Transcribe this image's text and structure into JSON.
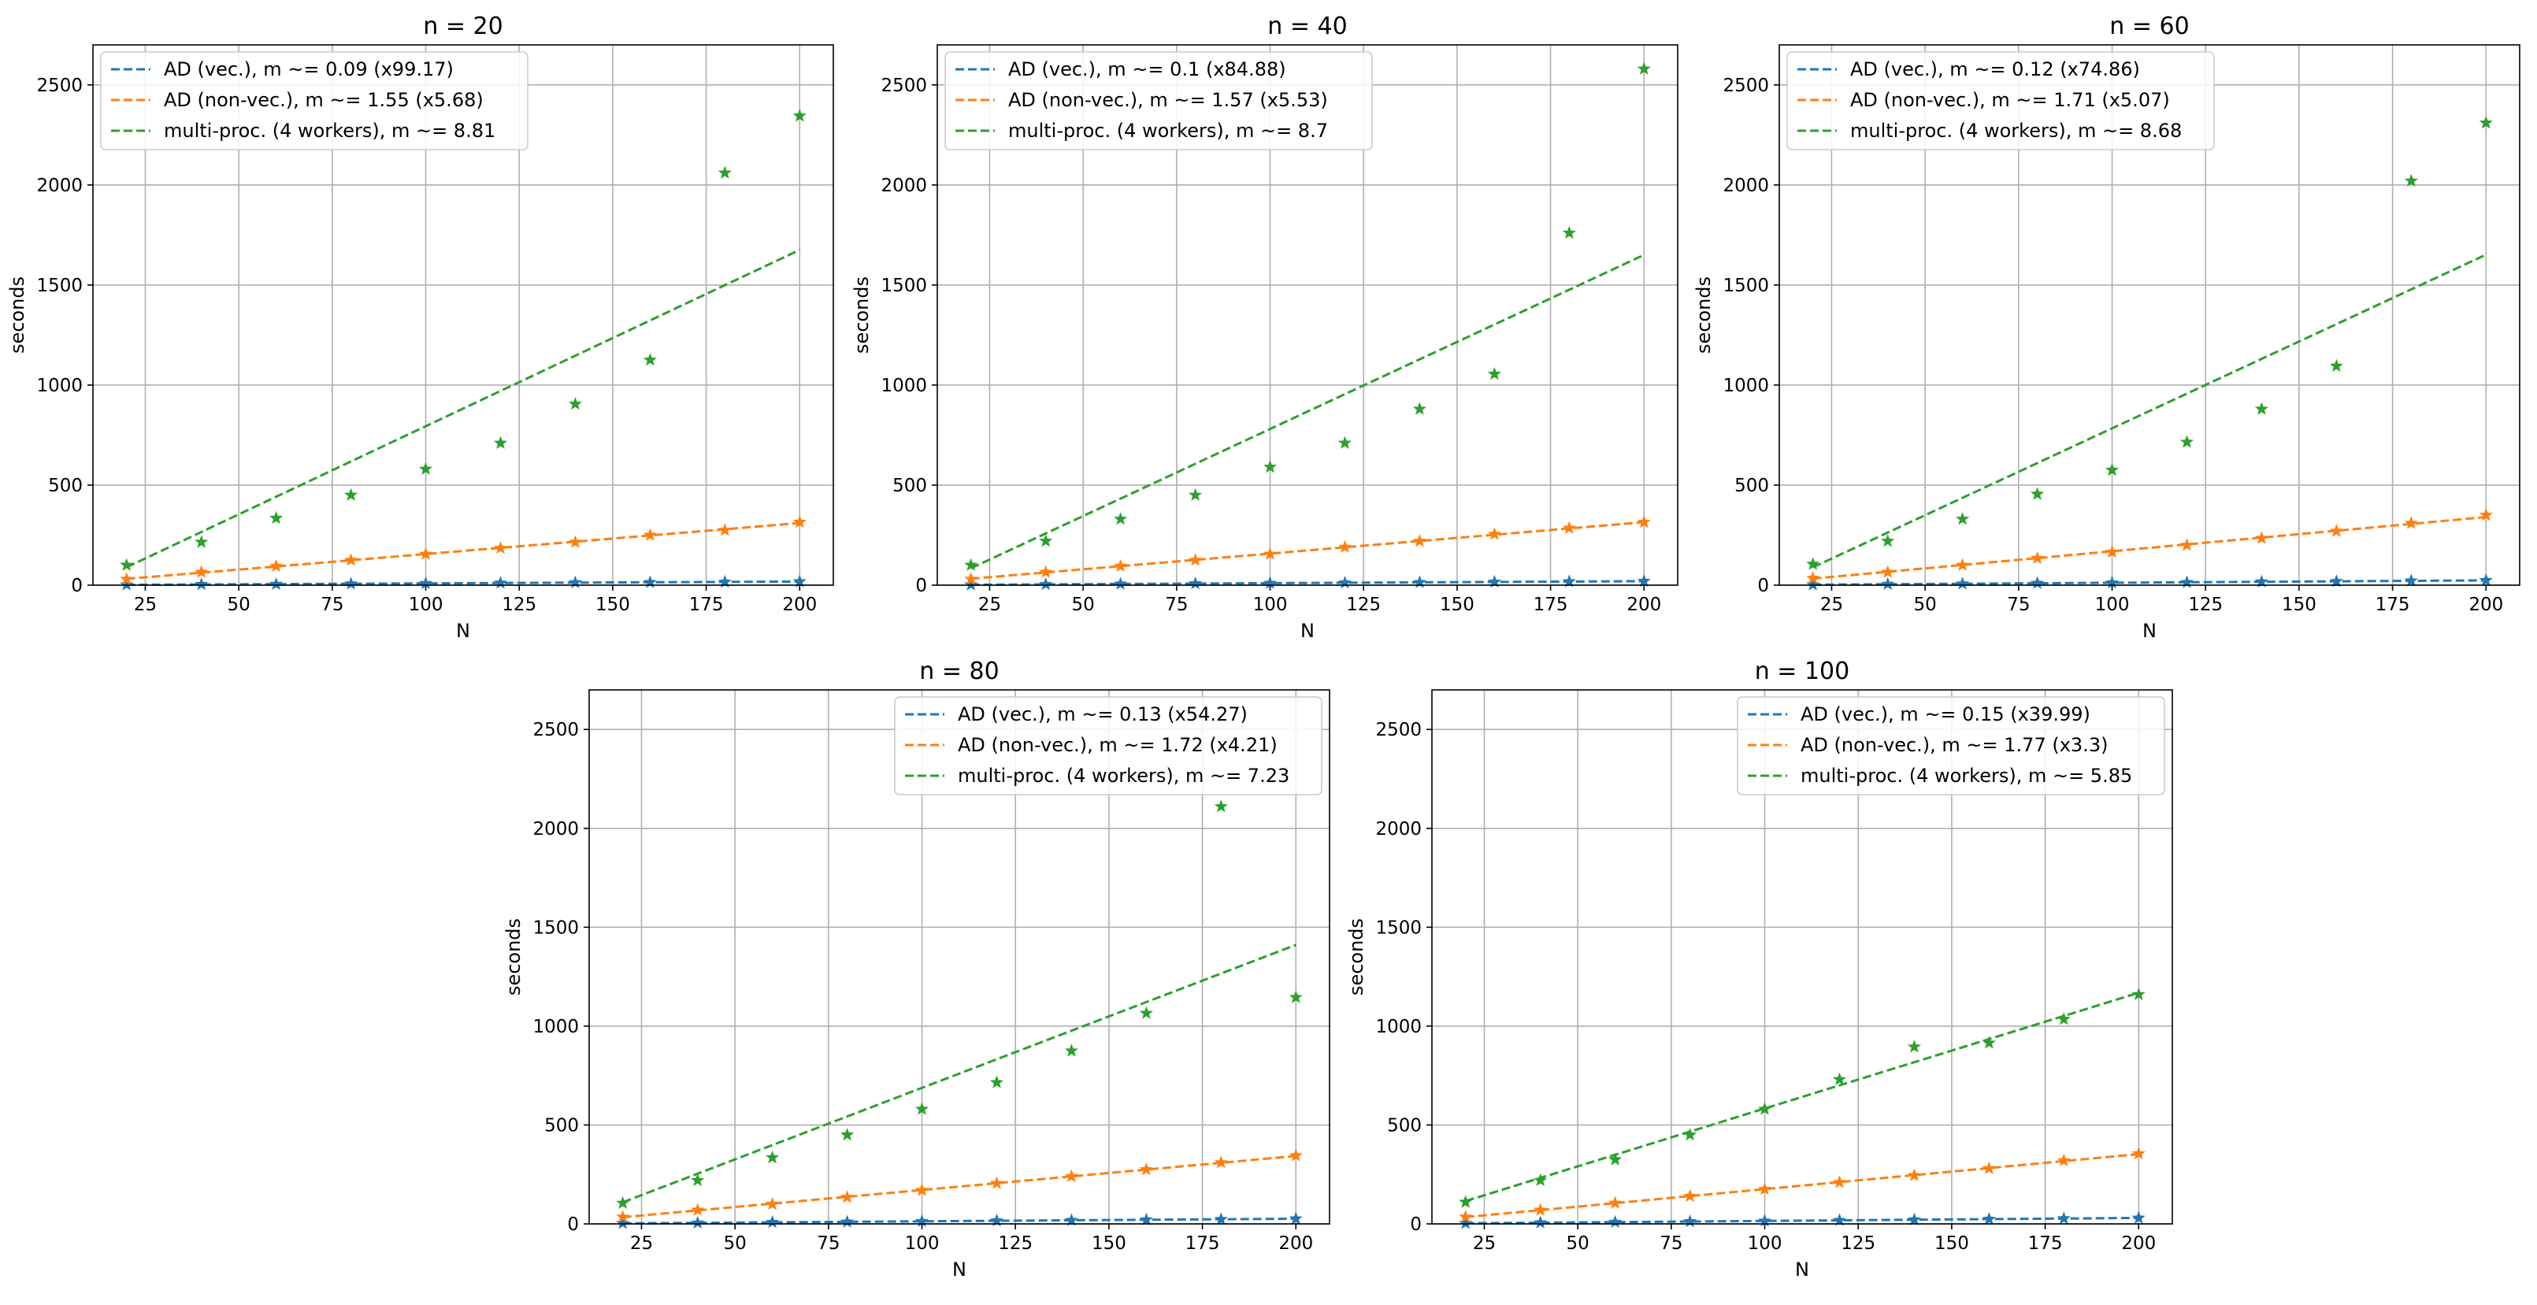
{
  "colors": {
    "vec": "#1f77b4",
    "nonvec": "#ff7f0e",
    "multi": "#2ca02c",
    "grid": "#b0b0b0",
    "axis": "#000000",
    "legend_border": "#cccccc"
  },
  "chart_data": [
    {
      "type": "line",
      "title": "n = 20",
      "xlabel": "N",
      "ylabel": "seconds",
      "xlim": [
        11,
        209
      ],
      "ylim": [
        0,
        2700
      ],
      "xticks": [
        25,
        50,
        75,
        100,
        125,
        150,
        175,
        200
      ],
      "yticks": [
        0,
        500,
        1000,
        1500,
        2000,
        2500
      ],
      "grid": true,
      "legend_position": "upper-left",
      "x": [
        20,
        40,
        60,
        80,
        100,
        120,
        140,
        160,
        180,
        200
      ],
      "series": [
        {
          "name": "AD (vec.), m ~= 0.09 (x99.17)",
          "key": "vec",
          "slope": 0.09,
          "values": [
            2,
            4,
            5,
            7,
            9,
            11,
            13,
            14,
            16,
            18
          ]
        },
        {
          "name": "AD (non-vec.), m ~= 1.55 (x5.68)",
          "key": "nonvec",
          "slope": 1.55,
          "values": [
            30,
            65,
            95,
            125,
            155,
            185,
            215,
            250,
            275,
            315
          ]
        },
        {
          "name": "multi-proc. (4 workers), m ~= 8.81",
          "key": "multi",
          "slope": 8.81,
          "values": [
            100,
            215,
            335,
            450,
            580,
            710,
            905,
            1125,
            2060,
            2345
          ]
        }
      ]
    },
    {
      "type": "line",
      "title": "n = 40",
      "xlabel": "N",
      "ylabel": "seconds",
      "xlim": [
        11,
        209
      ],
      "ylim": [
        0,
        2700
      ],
      "xticks": [
        25,
        50,
        75,
        100,
        125,
        150,
        175,
        200
      ],
      "yticks": [
        0,
        500,
        1000,
        1500,
        2000,
        2500
      ],
      "grid": true,
      "legend_position": "upper-left",
      "x": [
        20,
        40,
        60,
        80,
        100,
        120,
        140,
        160,
        180,
        200
      ],
      "series": [
        {
          "name": "AD (vec.), m ~= 0.1 (x84.88)",
          "key": "vec",
          "slope": 0.1,
          "values": [
            2,
            4,
            6,
            8,
            10,
            12,
            14,
            16,
            18,
            20
          ]
        },
        {
          "name": "AD (non-vec.), m ~= 1.57 (x5.53)",
          "key": "nonvec",
          "slope": 1.57,
          "values": [
            30,
            65,
            95,
            125,
            155,
            190,
            220,
            255,
            285,
            315
          ]
        },
        {
          "name": "multi-proc. (4 workers), m ~= 8.7",
          "key": "multi",
          "slope": 8.7,
          "values": [
            100,
            220,
            330,
            450,
            590,
            710,
            880,
            1055,
            1760,
            2580
          ]
        }
      ]
    },
    {
      "type": "line",
      "title": "n = 60",
      "xlabel": "N",
      "ylabel": "seconds",
      "xlim": [
        11,
        209
      ],
      "ylim": [
        0,
        2700
      ],
      "xticks": [
        25,
        50,
        75,
        100,
        125,
        150,
        175,
        200
      ],
      "yticks": [
        0,
        500,
        1000,
        1500,
        2000,
        2500
      ],
      "grid": true,
      "legend_position": "upper-left",
      "x": [
        20,
        40,
        60,
        80,
        100,
        120,
        140,
        160,
        180,
        200
      ],
      "series": [
        {
          "name": "AD (vec.), m ~= 0.12 (x74.86)",
          "key": "vec",
          "slope": 0.12,
          "values": [
            2,
            5,
            7,
            10,
            12,
            14,
            17,
            19,
            22,
            24
          ]
        },
        {
          "name": "AD (non-vec.), m ~= 1.71 (x5.07)",
          "key": "nonvec",
          "slope": 1.71,
          "values": [
            35,
            65,
            100,
            135,
            165,
            200,
            235,
            270,
            310,
            350
          ]
        },
        {
          "name": "multi-proc. (4 workers), m ~= 8.68",
          "key": "multi",
          "slope": 8.68,
          "values": [
            105,
            220,
            330,
            455,
            575,
            715,
            880,
            1095,
            2020,
            2310
          ]
        }
      ]
    },
    {
      "type": "line",
      "title": "n = 80",
      "xlabel": "N",
      "ylabel": "seconds",
      "xlim": [
        11,
        209
      ],
      "ylim": [
        0,
        2700
      ],
      "xticks": [
        25,
        50,
        75,
        100,
        125,
        150,
        175,
        200
      ],
      "yticks": [
        0,
        500,
        1000,
        1500,
        2000,
        2500
      ],
      "grid": true,
      "legend_position": "upper-right",
      "x": [
        20,
        40,
        60,
        80,
        100,
        120,
        140,
        160,
        180,
        200
      ],
      "series": [
        {
          "name": "AD (vec.), m ~= 0.13 (x54.27)",
          "key": "vec",
          "slope": 0.13,
          "values": [
            3,
            5,
            8,
            10,
            13,
            16,
            18,
            21,
            23,
            26
          ]
        },
        {
          "name": "AD (non-vec.), m ~= 1.72 (x4.21)",
          "key": "nonvec",
          "slope": 1.72,
          "values": [
            35,
            70,
            100,
            135,
            170,
            205,
            240,
            275,
            310,
            345
          ]
        },
        {
          "name": "multi-proc. (4 workers), m ~= 7.23",
          "key": "multi",
          "slope": 7.23,
          "values": [
            105,
            220,
            335,
            450,
            580,
            715,
            875,
            1065,
            2110,
            1145
          ]
        }
      ]
    },
    {
      "type": "line",
      "title": "n = 100",
      "xlabel": "N",
      "ylabel": "seconds",
      "xlim": [
        11,
        209
      ],
      "ylim": [
        0,
        2700
      ],
      "xticks": [
        25,
        50,
        75,
        100,
        125,
        150,
        175,
        200
      ],
      "yticks": [
        0,
        500,
        1000,
        1500,
        2000,
        2500
      ],
      "grid": true,
      "legend_position": "upper-right",
      "x": [
        20,
        40,
        60,
        80,
        100,
        120,
        140,
        160,
        180,
        200
      ],
      "series": [
        {
          "name": "AD (vec.), m ~= 0.15 (x39.99)",
          "key": "vec",
          "slope": 0.15,
          "values": [
            3,
            6,
            9,
            12,
            15,
            18,
            21,
            24,
            27,
            30
          ]
        },
        {
          "name": "AD (non-vec.), m ~= 1.77 (x3.3)",
          "key": "nonvec",
          "slope": 1.77,
          "values": [
            35,
            70,
            105,
            140,
            175,
            210,
            245,
            280,
            320,
            355
          ]
        },
        {
          "name": "multi-proc. (4 workers), m ~= 5.85",
          "key": "multi",
          "slope": 5.85,
          "values": [
            110,
            220,
            325,
            450,
            580,
            730,
            895,
            915,
            1035,
            1160
          ]
        }
      ]
    }
  ]
}
